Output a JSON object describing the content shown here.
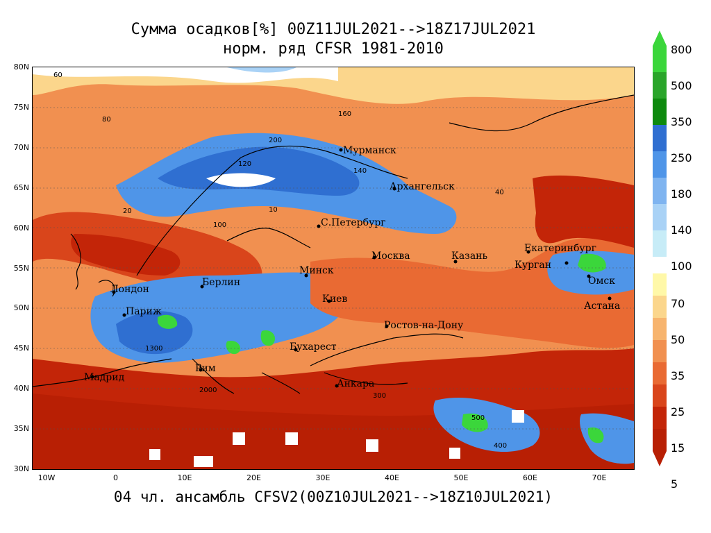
{
  "title_line1": "Сумма осадков[%] 00Z11JUL2021-->18Z17JUL2021",
  "title_line2": "норм. ряд CFSR 1981-2010",
  "footer": "04 чл. ансамбль CFSV2(00Z10JUL2021-->18Z10JUL2021)",
  "lat_labels": [
    "80N",
    "75N",
    "70N",
    "65N",
    "60N",
    "55N",
    "50N",
    "45N",
    "40N",
    "35N",
    "30N"
  ],
  "lon_labels": [
    "10W",
    "0",
    "10E",
    "20E",
    "30E",
    "40E",
    "50E",
    "60E",
    "70E"
  ],
  "colorbar": {
    "upper": {
      "labels": [
        "800",
        "500",
        "350",
        "250",
        "180",
        "140",
        "100"
      ],
      "colors": [
        "#3bd63b",
        "#2aa52a",
        "#0e8a0e",
        "#2f6fd1",
        "#4f95e8",
        "#7fb4f0",
        "#a9d2f6",
        "#c7ecf7"
      ]
    },
    "lower": {
      "labels": [
        "70",
        "50",
        "35",
        "25",
        "15",
        "5"
      ],
      "colors": [
        "#fff8a8",
        "#fbd68c",
        "#f7b46e",
        "#f19050",
        "#e96a33",
        "#d9451b",
        "#c32508",
        "#b81f04"
      ]
    }
  },
  "cities": [
    {
      "name": "Мурманск"
    },
    {
      "name": "Архангельск"
    },
    {
      "name": "С.Петербург"
    },
    {
      "name": "Москва"
    },
    {
      "name": "Казань"
    },
    {
      "name": "Екатеринбург"
    },
    {
      "name": "Курган"
    },
    {
      "name": "Омск"
    },
    {
      "name": "Астана"
    },
    {
      "name": "Минск"
    },
    {
      "name": "Берлин"
    },
    {
      "name": "Лондон"
    },
    {
      "name": "Париж"
    },
    {
      "name": "Киев"
    },
    {
      "name": "Ростов-на-Дону"
    },
    {
      "name": "Бухарест"
    },
    {
      "name": "Рим"
    },
    {
      "name": "Мадрид"
    },
    {
      "name": "Анкара"
    }
  ],
  "contour_values": [
    "60",
    "80",
    "160",
    "140",
    "120",
    "200",
    "300",
    "400",
    "500",
    "100",
    "40",
    "20",
    "10",
    "2000",
    "1300"
  ]
}
